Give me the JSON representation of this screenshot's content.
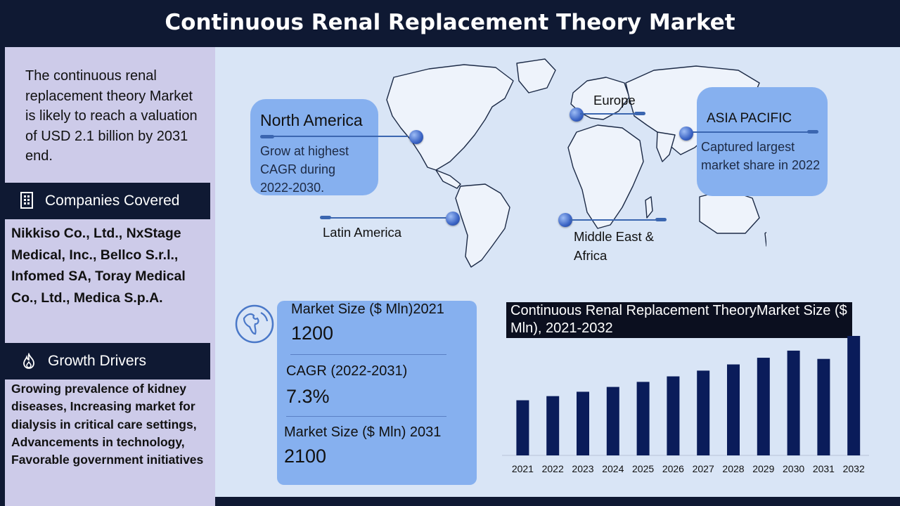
{
  "header": {
    "title": "Continuous Renal Replacement Theory Market"
  },
  "left_panel": {
    "intro": "The  continuous renal replacement theory Market is likely to reach a valuation of USD 2.1 billion by 2031 end.",
    "companies": {
      "heading": "Companies Covered",
      "icon": "building-icon",
      "text": "Nikkiso Co., Ltd., NxStage Medical, Inc., Bellco S.r.l., Infomed SA, Toray Medical Co., Ltd., Medica S.p.A."
    },
    "drivers": {
      "heading": "Growth Drivers",
      "icon": "flame-icon",
      "text": "Growing prevalence of kidney diseases, Increasing market for dialysis in critical care settings, Advancements in technology, Favorable government initiatives"
    }
  },
  "map": {
    "north_america": {
      "title": "North America",
      "desc": "Grow at highest CAGR during 2022-2030."
    },
    "asia_pacific": {
      "title": "ASIA PACIFIC",
      "desc": "Captured largest market share in 2022"
    },
    "europe": {
      "label": "Europe"
    },
    "latin_america": {
      "label": "Latin America"
    },
    "mea": {
      "label": "Middle East & Africa"
    }
  },
  "stats": {
    "icon": "globe-icon",
    "size_2021_label": "Market Size ($ Mln)2021",
    "size_2021_value": "1200",
    "cagr_label": "CAGR (2022-2031)",
    "cagr_value": "7.3%",
    "size_2031_label": "Market Size ($ Mln) 2031",
    "size_2031_value": "2100"
  },
  "chart_data": {
    "type": "bar",
    "title": "Continuous  Renal Replacement TheoryMarket Size ($ Mln), 2021-2032",
    "categories": [
      "2021",
      "2022",
      "2023",
      "2024",
      "2025",
      "2026",
      "2027",
      "2028",
      "2029",
      "2030",
      "2031",
      "2032"
    ],
    "values": [
      1200,
      1290,
      1385,
      1490,
      1600,
      1720,
      1845,
      1980,
      2125,
      2280,
      2100,
      2600
    ],
    "bar_color": "#0a1c5a"
  },
  "colors": {
    "navy": "#0f1933",
    "left_panel": "#cdcbe9",
    "main_panel": "#d9e5f6",
    "accent_box": "#86b0ef"
  }
}
